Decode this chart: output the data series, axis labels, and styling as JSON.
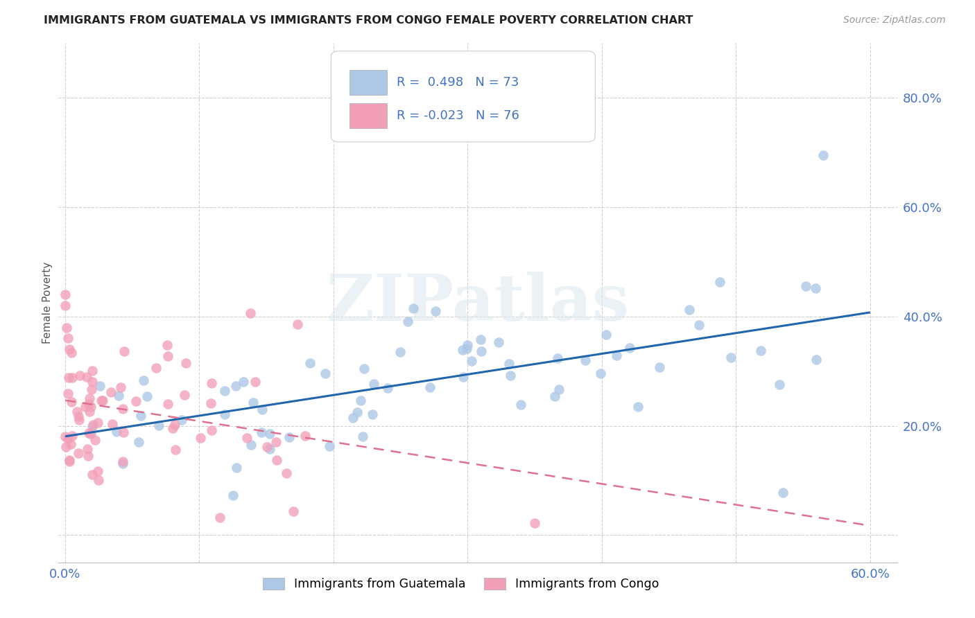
{
  "title": "IMMIGRANTS FROM GUATEMALA VS IMMIGRANTS FROM CONGO FEMALE POVERTY CORRELATION CHART",
  "source": "Source: ZipAtlas.com",
  "ylabel": "Female Poverty",
  "xlim": [
    -0.005,
    0.62
  ],
  "ylim": [
    -0.05,
    0.9
  ],
  "yticks": [
    0.0,
    0.2,
    0.4,
    0.6,
    0.8
  ],
  "ytick_labels": [
    "",
    "20.0%",
    "40.0%",
    "60.0%",
    "80.0%"
  ],
  "xticks": [
    0.0,
    0.1,
    0.2,
    0.3,
    0.4,
    0.5,
    0.6
  ],
  "xtick_labels": [
    "0.0%",
    "",
    "",
    "",
    "",
    "",
    "60.0%"
  ],
  "R_guatemala": 0.498,
  "N_guatemala": 73,
  "R_congo": -0.023,
  "N_congo": 76,
  "color_guatemala": "#adc8e6",
  "color_congo": "#f2a0b8",
  "line_color_guatemala": "#2166ac",
  "line_color_congo": "#e07090",
  "watermark": "ZIPatlas",
  "legend_text_color": "#4472c4",
  "grid_color": "#d0d0d0",
  "tick_color": "#4472c4"
}
